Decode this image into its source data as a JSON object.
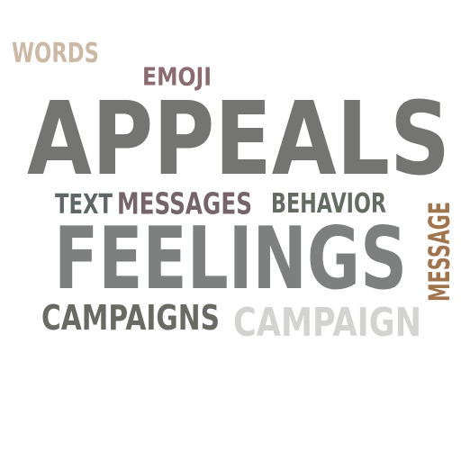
{
  "word_cloud": {
    "words": [
      {
        "key": "words",
        "text": "WORDS",
        "color": "#cbb9a6"
      },
      {
        "key": "emoji",
        "text": "EMOJI",
        "color": "#8a6b70"
      },
      {
        "key": "appeals",
        "text": "APPEALS",
        "color": "#747572"
      },
      {
        "key": "text",
        "text": "TEXT",
        "color": "#5f6666"
      },
      {
        "key": "messages",
        "text": "MESSAGES",
        "color": "#75656b"
      },
      {
        "key": "behavior",
        "text": "BEHAVIOR",
        "color": "#646b60"
      },
      {
        "key": "message",
        "text": "MESSAGE",
        "color": "#a0744d"
      },
      {
        "key": "feelings",
        "text": "FEELINGS",
        "color": "#7e8080"
      },
      {
        "key": "campaigns",
        "text": "CAMPAIGNS",
        "color": "#6a6a64"
      },
      {
        "key": "campaign",
        "text": "CAMPAIGN",
        "color": "#d3d4d1"
      }
    ]
  }
}
